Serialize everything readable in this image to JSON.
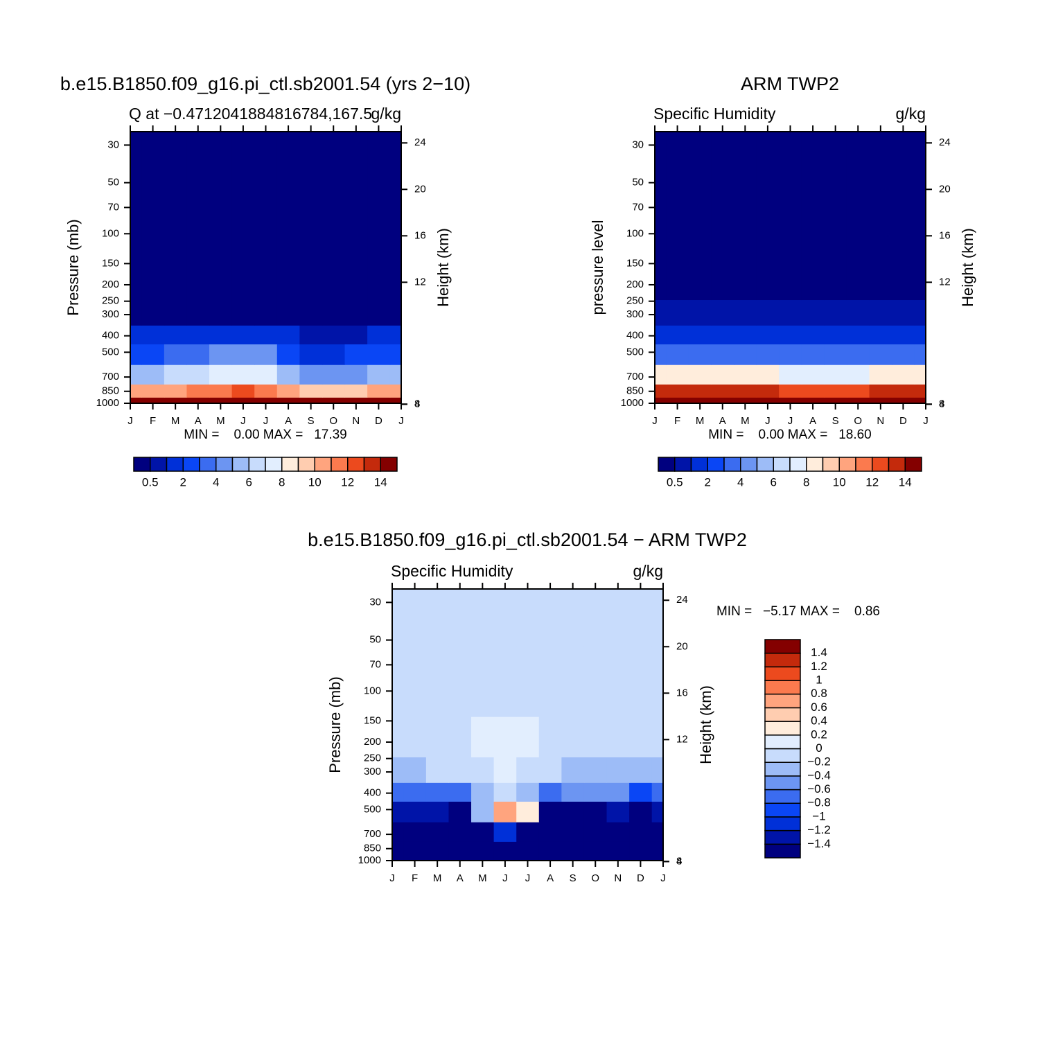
{
  "chart_data": [
    {
      "type": "contour",
      "title": "b.e15.B1850.f09_g16.pi_ctl.sb2001.54 (yrs 2−10)",
      "subtitle_left": "Q at −0.4712041884816784,167.5",
      "subtitle_right": "g/kg",
      "ylabel": "Pressure (mb)",
      "y2label": "Height (km)",
      "stats": "MIN =    0.00 MAX =   17.39",
      "categories": [
        "J",
        "F",
        "M",
        "A",
        "M",
        "J",
        "J",
        "A",
        "S",
        "O",
        "N",
        "D",
        "J"
      ],
      "y": [
        1000,
        850,
        700,
        500,
        400,
        300,
        200,
        100,
        30
      ],
      "z": [
        [
          16,
          16,
          16.5,
          16.5,
          16.5,
          17,
          17,
          16.5,
          16,
          16,
          16,
          16,
          16
        ],
        [
          10,
          10,
          10.5,
          11,
          11.5,
          12,
          11.5,
          10.5,
          9.5,
          9.5,
          9.5,
          10,
          10
        ],
        [
          5.5,
          5.5,
          6,
          6.5,
          7,
          7.5,
          7,
          5.5,
          4.5,
          4,
          4.5,
          5,
          5.5
        ],
        [
          2.5,
          2.5,
          3,
          3.5,
          4,
          4.5,
          4,
          2.5,
          1.8,
          1.8,
          2,
          2.5,
          2.5
        ],
        [
          1.2,
          1.2,
          1.3,
          1.5,
          1.6,
          1.7,
          1.6,
          1.2,
          0.8,
          0.8,
          0.9,
          1.1,
          1.2
        ],
        [
          0.3,
          0.3,
          0.3,
          0.3,
          0.3,
          0.3,
          0.3,
          0.3,
          0.3,
          0.3,
          0.3,
          0.3,
          0.3
        ],
        [
          0.05,
          0.05,
          0.05,
          0.05,
          0.05,
          0.05,
          0.05,
          0.05,
          0.05,
          0.05,
          0.05,
          0.05,
          0.05
        ],
        [
          0.003,
          0.003,
          0.003,
          0.003,
          0.003,
          0.003,
          0.003,
          0.003,
          0.003,
          0.003,
          0.003,
          0.003,
          0.003
        ],
        [
          0.002,
          0.002,
          0.002,
          0.002,
          0.002,
          0.002,
          0.002,
          0.002,
          0.002,
          0.002,
          0.002,
          0.002,
          0.002
        ]
      ],
      "ylim": [
        1000,
        25
      ],
      "ylog": true,
      "yticks": [
        30,
        50,
        70,
        100,
        150,
        200,
        250,
        300,
        400,
        500,
        700,
        850,
        1000
      ],
      "y2ticks": [
        4,
        8,
        12,
        16,
        20,
        24
      ],
      "contour_levels": [
        0.5,
        1,
        2,
        3,
        4,
        5,
        6,
        7,
        8,
        9,
        10,
        11,
        12,
        13,
        14
      ],
      "colorbar_ticks": [
        0.5,
        2,
        4,
        6,
        8,
        10,
        12,
        14
      ],
      "colors": [
        "#00007f",
        "#0014a8",
        "#0030d8",
        "#0a46f5",
        "#3b6cf0",
        "#6c95f2",
        "#9dbcf7",
        "#c8dcfc",
        "#e2eefe",
        "#ffeddc",
        "#ffcdb0",
        "#ffa47e",
        "#fb7a4e",
        "#ec4a1e",
        "#c42a0c",
        "#840000"
      ]
    },
    {
      "type": "contour",
      "title": "ARM TWP2",
      "subtitle_left": "Specific Humidity",
      "subtitle_right": "g/kg",
      "ylabel": "pressure level",
      "y2label": "Height (km)",
      "stats": "MIN =    0.00 MAX =   18.60",
      "categories": [
        "J",
        "F",
        "M",
        "A",
        "M",
        "J",
        "J",
        "A",
        "S",
        "O",
        "N",
        "D",
        "J"
      ],
      "y": [
        1000,
        850,
        700,
        500,
        400,
        300,
        200,
        100,
        30
      ],
      "z": [
        [
          18.3,
          18.4,
          18.5,
          18.5,
          18.4,
          18.3,
          18.2,
          18.2,
          18.1,
          18.1,
          18.2,
          18.3,
          18.3
        ],
        [
          13,
          13,
          13.5,
          13.8,
          13.2,
          13,
          12.8,
          12.8,
          12.7,
          12.8,
          13,
          13,
          13
        ],
        [
          8,
          8,
          8.3,
          8.5,
          8.2,
          8,
          7.8,
          7.7,
          7.6,
          7.8,
          8,
          8,
          8
        ],
        [
          3.5,
          3.5,
          3.6,
          3.5,
          3.4,
          3.3,
          3.3,
          3.2,
          3.2,
          3.3,
          3.4,
          3.5,
          3.5
        ],
        [
          1.8,
          1.7,
          1.7,
          1.7,
          1.6,
          1.6,
          1.6,
          1.5,
          1.5,
          1.6,
          1.7,
          1.8,
          1.8
        ],
        [
          0.7,
          0.6,
          0.6,
          0.6,
          0.5,
          0.5,
          0.5,
          0.5,
          0.5,
          0.5,
          0.6,
          0.6,
          0.7
        ],
        [
          0.08,
          0.08,
          0.08,
          0.08,
          0.08,
          0.08,
          0.08,
          0.08,
          0.08,
          0.08,
          0.08,
          0.08,
          0.08
        ],
        [
          0.004,
          0.004,
          0.004,
          0.004,
          0.004,
          0.004,
          0.004,
          0.004,
          0.004,
          0.004,
          0.004,
          0.004,
          0.004
        ],
        [
          0.002,
          0.002,
          0.002,
          0.002,
          0.002,
          0.002,
          0.002,
          0.002,
          0.002,
          0.002,
          0.002,
          0.002,
          0.002
        ]
      ],
      "ylim": [
        1000,
        25
      ],
      "ylog": true,
      "yticks": [
        30,
        50,
        70,
        100,
        150,
        200,
        250,
        300,
        400,
        500,
        700,
        850,
        1000
      ],
      "y2ticks": [
        4,
        8,
        12,
        16,
        20,
        24
      ],
      "contour_levels": [
        0.5,
        1,
        2,
        3,
        4,
        5,
        6,
        7,
        8,
        9,
        10,
        11,
        12,
        13,
        14
      ],
      "colorbar_ticks": [
        0.5,
        2,
        4,
        6,
        8,
        10,
        12,
        14
      ],
      "colors": [
        "#00007f",
        "#0014a8",
        "#0030d8",
        "#0a46f5",
        "#3b6cf0",
        "#6c95f2",
        "#9dbcf7",
        "#c8dcfc",
        "#e2eefe",
        "#ffeddc",
        "#ffcdb0",
        "#ffa47e",
        "#fb7a4e",
        "#ec4a1e",
        "#c42a0c",
        "#840000"
      ]
    },
    {
      "type": "contour",
      "title": "b.e15.B1850.f09_g16.pi_ctl.sb2001.54 − ARM TWP2",
      "subtitle_left": "Specific Humidity",
      "subtitle_right": "g/kg",
      "ylabel": "Pressure (mb)",
      "y2label": "Height (km)",
      "stats": "MIN =   −5.17 MAX =    0.86",
      "categories": [
        "J",
        "F",
        "M",
        "A",
        "M",
        "J",
        "J",
        "A",
        "S",
        "O",
        "N",
        "D",
        "J"
      ],
      "y": [
        1000,
        850,
        700,
        500,
        400,
        300,
        200,
        100,
        30
      ],
      "z": [
        [
          -1.6,
          -1.6,
          -1.6,
          -1.6,
          -1.6,
          -1.6,
          -1.6,
          -1.6,
          -1.6,
          -1.6,
          -1.6,
          -1.6,
          -1.6
        ],
        [
          -2,
          -2,
          -2,
          -2,
          -2,
          -2,
          -2,
          -2,
          -2,
          -2,
          -2,
          -2,
          -2
        ],
        [
          -2.5,
          -2.5,
          -2.6,
          -2.8,
          -2,
          -1.2,
          -2.2,
          -3,
          -3,
          -3,
          -3,
          -3,
          -2.5
        ],
        [
          -1.3,
          -1.3,
          -1.4,
          -1.6,
          -0.3,
          0.6,
          0.2,
          -1.5,
          -1.6,
          -1.5,
          -1.4,
          -1.6,
          -1.3
        ],
        [
          -0.7,
          -0.7,
          -0.7,
          -0.8,
          -0.4,
          -0.1,
          -0.3,
          -0.7,
          -0.6,
          -0.5,
          -0.5,
          -0.9,
          -0.7
        ],
        [
          -0.3,
          -0.25,
          -0.2,
          -0.2,
          -0.1,
          0.05,
          -0.1,
          -0.2,
          -0.25,
          -0.25,
          -0.3,
          -0.3,
          -0.3
        ],
        [
          -0.05,
          -0.05,
          -0.05,
          -0.05,
          0.05,
          0.1,
          0.1,
          -0.05,
          -0.05,
          -0.05,
          -0.05,
          -0.05,
          -0.05
        ],
        [
          -0.05,
          -0.05,
          -0.05,
          -0.05,
          -0.05,
          -0.05,
          -0.05,
          -0.05,
          -0.05,
          -0.05,
          -0.05,
          -0.05,
          -0.05
        ],
        [
          -0.05,
          -0.05,
          -0.05,
          -0.05,
          -0.05,
          -0.05,
          -0.05,
          -0.05,
          -0.05,
          -0.05,
          -0.05,
          -0.05,
          -0.05
        ]
      ],
      "ylim": [
        1000,
        25
      ],
      "ylog": true,
      "yticks": [
        30,
        50,
        70,
        100,
        150,
        200,
        250,
        300,
        400,
        500,
        700,
        850,
        1000
      ],
      "y2ticks": [
        4,
        8,
        12,
        16,
        20,
        24
      ],
      "contour_levels": [
        {
          "value": -1.4,
          "label": "−1.4"
        },
        {
          "value": -1.2,
          "label": "−1.2"
        },
        {
          "value": -1,
          "label": "−1"
        },
        {
          "value": -0.8,
          "label": "−0.8"
        },
        {
          "value": -0.6,
          "label": "−0.6"
        },
        {
          "value": -0.4,
          "label": "−0.4"
        },
        {
          "value": -0.2,
          "label": "−0.2"
        },
        0,
        0.2,
        0.4,
        0.6,
        0.8,
        1,
        1.2,
        1.4
      ],
      "colors": [
        "#00007f",
        "#0014a8",
        "#0030d8",
        "#0a46f5",
        "#3b6cf0",
        "#6c95f2",
        "#9dbcf7",
        "#c8dcfc",
        "#e2eefe",
        "#ffeddc",
        "#ffcdb0",
        "#ffa47e",
        "#fb7a4e",
        "#ec4a1e",
        "#c42a0c",
        "#840000"
      ]
    }
  ]
}
